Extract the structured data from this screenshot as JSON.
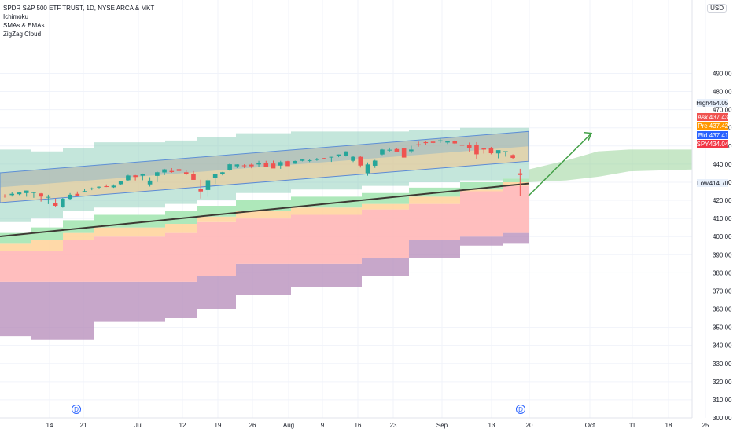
{
  "legend": {
    "title": "SPDR S&P 500 ETF TRUST, 1D, NYSE ARCA & MKT",
    "indicators": [
      "Ichimoku",
      "SMAs & EMAs",
      "ZigZag Cloud"
    ]
  },
  "currency": "USD",
  "y_axis": {
    "ticks": [
      "490.00",
      "480.00",
      "470.00",
      "460.00",
      "450.00",
      "440.00",
      "430.00",
      "420.00",
      "410.00",
      "400.00",
      "390.00",
      "380.00",
      "370.00",
      "360.00",
      "350.00",
      "340.00",
      "330.00",
      "320.00",
      "310.00",
      "300.00"
    ]
  },
  "x_axis": {
    "ticks": [
      "14",
      "21",
      "Jul",
      "12",
      "19",
      "26",
      "Aug",
      "9",
      "16",
      "23",
      "Sep",
      "13",
      "20",
      "Oct",
      "11",
      "18",
      "25"
    ]
  },
  "price_tags": {
    "high": {
      "label": "High",
      "value": "454.05"
    },
    "ask": {
      "label": "Ask",
      "value": "437.43"
    },
    "pre": {
      "label": "Pre",
      "value": "437.42"
    },
    "bid": {
      "label": "Bid",
      "value": "437.41"
    },
    "spy": {
      "label": "SPY",
      "value": "434.04"
    },
    "low": {
      "label": "Low",
      "value": "414.70"
    }
  },
  "event_markers": [
    "D",
    "D"
  ],
  "colors": {
    "up": "#26a69a",
    "down": "#ef5350",
    "ask": "#f05350",
    "pre": "#ff9800",
    "bid": "#2962ff",
    "spy": "#f23645",
    "arrow": "#43a047"
  },
  "chart_data": {
    "type": "candlestick",
    "symbol": "SPY",
    "timeframe": "1D",
    "ylim": [
      300,
      495
    ],
    "dates": [
      "Jun 9",
      "Jun 10",
      "Jun 11",
      "Jun 14",
      "Jun 15",
      "Jun 16",
      "Jun 17",
      "Jun 18",
      "Jun 21",
      "Jun 22",
      "Jun 23",
      "Jun 24",
      "Jun 25",
      "Jun 28",
      "Jun 29",
      "Jun 30",
      "Jul 1",
      "Jul 2",
      "Jul 6",
      "Jul 7",
      "Jul 8",
      "Jul 9",
      "Jul 12",
      "Jul 13",
      "Jul 14",
      "Jul 15",
      "Jul 16",
      "Jul 19",
      "Jul 20",
      "Jul 21",
      "Jul 22",
      "Jul 23",
      "Jul 26",
      "Jul 27",
      "Jul 28",
      "Jul 29",
      "Jul 30",
      "Aug 2",
      "Aug 3",
      "Aug 4",
      "Aug 5",
      "Aug 6",
      "Aug 9",
      "Aug 10",
      "Aug 11",
      "Aug 12",
      "Aug 13",
      "Aug 16",
      "Aug 17",
      "Aug 18",
      "Aug 19",
      "Aug 20",
      "Aug 23",
      "Aug 24",
      "Aug 25",
      "Aug 26",
      "Aug 27",
      "Aug 30",
      "Aug 31",
      "Sep 1",
      "Sep 2",
      "Sep 3",
      "Sep 7",
      "Sep 8",
      "Sep 9",
      "Sep 10",
      "Sep 13",
      "Sep 14",
      "Sep 15",
      "Sep 16",
      "Sep 17",
      "Sep 20"
    ],
    "open": [
      422.6,
      422.9,
      423.4,
      424.0,
      424.3,
      423.8,
      421.9,
      418.5,
      416.5,
      420.8,
      423.6,
      425.0,
      426.5,
      427.1,
      427.8,
      427.2,
      428.9,
      431.1,
      433.8,
      433.6,
      428.8,
      433.5,
      435.4,
      436.2,
      437.2,
      435.5,
      434.5,
      426.2,
      425.7,
      432.3,
      434.7,
      436.5,
      438.8,
      439.3,
      439.7,
      439.8,
      440.5,
      440.3,
      439.2,
      441.6,
      440.2,
      441.8,
      442.0,
      442.3,
      443.3,
      443.6,
      444.5,
      444.5,
      441.8,
      444.0,
      435.0,
      439.1,
      445.3,
      447.9,
      448.3,
      448.6,
      447.1,
      450.9,
      452.1,
      452.4,
      452.5,
      451.9,
      452.7,
      450.6,
      450.7,
      450.5,
      448.6,
      448.6,
      445.9,
      446.5,
      445.0,
      434.9
    ],
    "high": [
      423.3,
      424.6,
      424.4,
      425.4,
      424.7,
      424.0,
      423.1,
      421.0,
      421.3,
      424.0,
      424.9,
      426.4,
      427.1,
      427.7,
      428.8,
      428.8,
      430.6,
      434.1,
      434.0,
      434.8,
      432.8,
      435.9,
      437.4,
      437.8,
      437.9,
      436.7,
      436.1,
      431.4,
      431.8,
      434.7,
      435.7,
      440.3,
      439.9,
      439.9,
      440.3,
      441.8,
      441.8,
      441.9,
      441.8,
      441.8,
      441.9,
      442.9,
      442.8,
      443.4,
      443.4,
      444.0,
      445.3,
      447.1,
      444.6,
      444.6,
      440.9,
      442.3,
      448.3,
      449.1,
      448.9,
      448.9,
      450.1,
      452.4,
      452.7,
      453.0,
      454.1,
      452.7,
      453.1,
      451.4,
      451.9,
      452.1,
      448.9,
      449.5,
      447.3,
      446.9,
      445.4,
      437.4
    ],
    "low": [
      421.5,
      422.1,
      422.9,
      422.0,
      421.4,
      419.3,
      417.9,
      416.5,
      415.9,
      420.4,
      423.3,
      424.4,
      425.6,
      426.6,
      427.3,
      426.9,
      428.6,
      430.8,
      431.0,
      431.1,
      427.6,
      430.1,
      433.9,
      435.2,
      434.4,
      433.9,
      431.3,
      421.0,
      422.0,
      429.1,
      433.8,
      436.3,
      437.8,
      437.8,
      437.7,
      438.6,
      439.6,
      439.5,
      437.4,
      440.2,
      440.1,
      441.5,
      441.1,
      441.8,
      442.9,
      441.2,
      443.8,
      444.2,
      441.1,
      438.1,
      433.6,
      437.9,
      444.9,
      446.9,
      447.9,
      443.6,
      446.0,
      449.6,
      450.6,
      451.1,
      451.7,
      451.1,
      451.1,
      448.3,
      446.9,
      443.0,
      445.8,
      445.4,
      443.2,
      444.1,
      442.9,
      422.2
    ],
    "close": [
      422.5,
      423.6,
      424.3,
      425.4,
      424.5,
      422.1,
      421.9,
      417.0,
      420.9,
      423.1,
      422.6,
      425.1,
      426.6,
      427.5,
      427.4,
      428.1,
      430.4,
      433.7,
      432.9,
      434.5,
      430.9,
      435.5,
      437.1,
      435.6,
      436.2,
      434.7,
      431.3,
      424.9,
      431.1,
      434.5,
      435.5,
      439.9,
      439.8,
      439.0,
      438.8,
      440.7,
      438.5,
      437.6,
      441.1,
      438.9,
      441.7,
      442.5,
      442.1,
      442.9,
      443.2,
      444.0,
      445.3,
      447.0,
      444.0,
      439.2,
      439.8,
      441.9,
      448.0,
      447.9,
      446.9,
      443.6,
      448.0,
      450.5,
      451.6,
      451.7,
      453.1,
      452.6,
      451.4,
      450.2,
      449.0,
      445.4,
      448.0,
      446.0,
      447.7,
      447.1,
      443.4,
      434.0
    ],
    "regression_channel": {
      "start": [
        435.2,
        418.7
      ],
      "end": [
        458.0,
        441.6
      ],
      "mid_end": [
        449.8
      ]
    },
    "moving_average": [
      400.1,
      429.3
    ],
    "forecast_arrow": {
      "from": "Sep 20",
      "to": "Oct",
      "from_price": 422.5,
      "to_price": 457.0
    }
  }
}
